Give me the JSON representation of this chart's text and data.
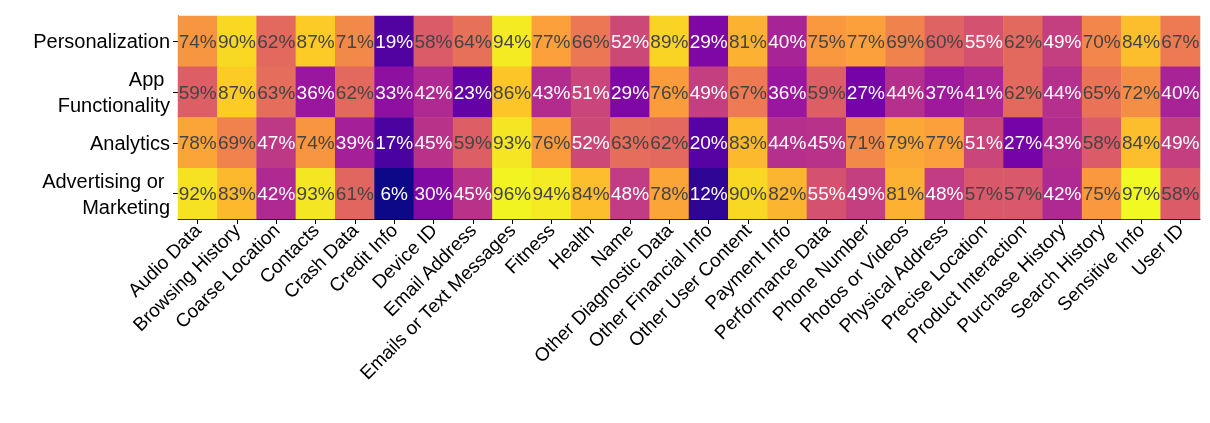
{
  "chart_data": {
    "type": "heatmap",
    "categories": [
      "Audio Data",
      "Browsing History",
      "Coarse Location",
      "Contacts",
      "Crash Data",
      "Credit Info",
      "Device ID",
      "Email Address",
      "Emails or Text Messages",
      "Fitness",
      "Health",
      "Name",
      "Other Diagnostic Data",
      "Other Financial Info",
      "Other User Content",
      "Payment Info",
      "Performance Data",
      "Phone Number",
      "Photos or Videos",
      "Physical Address",
      "Precise Location",
      "Product Interaction",
      "Purchase History",
      "Search History",
      "Sensitive Info",
      "User ID"
    ],
    "y_categories": [
      "Personalization",
      "App Functionality",
      "Analytics",
      "Advertising or Marketing"
    ],
    "cells": [
      [
        74,
        90,
        62,
        87,
        71,
        19,
        58,
        64,
        94,
        77,
        66,
        52,
        89,
        29,
        81,
        40,
        75,
        77,
        69,
        60,
        55,
        62,
        49,
        70,
        84,
        67
      ],
      [
        59,
        87,
        63,
        36,
        62,
        33,
        42,
        23,
        86,
        43,
        51,
        29,
        76,
        49,
        67,
        36,
        59,
        27,
        44,
        37,
        41,
        62,
        44,
        65,
        72,
        40
      ],
      [
        78,
        69,
        47,
        74,
        39,
        17,
        45,
        59,
        93,
        76,
        52,
        63,
        62,
        20,
        83,
        44,
        45,
        71,
        79,
        77,
        51,
        27,
        43,
        58,
        84,
        49
      ],
      [
        92,
        83,
        42,
        93,
        61,
        6,
        30,
        45,
        96,
        94,
        84,
        48,
        78,
        12,
        90,
        82,
        55,
        49,
        81,
        48,
        57,
        57,
        42,
        75,
        97,
        58
      ]
    ],
    "cell_labels": [
      [
        "74%",
        "90%",
        "62%",
        "87%",
        "71%",
        "19%",
        "58%",
        "64%",
        "94%",
        "77%",
        "66%",
        "52%",
        "89%",
        "29%",
        "81%",
        "40%",
        "75%",
        "77%",
        "69%",
        "60%",
        "55%",
        "62%",
        "49%",
        "70%",
        "84%",
        "67%"
      ],
      [
        "59%",
        "87%",
        "63%",
        "36%",
        "62%",
        "33%",
        "42%",
        "23%",
        "86%",
        "43%",
        "51%",
        "29%",
        "76%",
        "49%",
        "67%",
        "36%",
        "59%",
        "27%",
        "44%",
        "37%",
        "41%",
        "62%",
        "44%",
        "65%",
        "72%",
        "40%"
      ],
      [
        "78%",
        "69%",
        "47%",
        "74%",
        "39%",
        "17%",
        "45%",
        "59%",
        "93%",
        "76%",
        "52%",
        "63%",
        "62%",
        "20%",
        "83%",
        "44%",
        "45%",
        "71%",
        "79%",
        "77%",
        "51%",
        "27%",
        "43%",
        "58%",
        "84%",
        "49%"
      ],
      [
        "92%",
        "83%",
        "42%",
        "93%",
        "61%",
        "6%",
        "30%",
        "45%",
        "96%",
        "94%",
        "84%",
        "48%",
        "78%",
        "12%",
        "90%",
        "82%",
        "55%",
        "49%",
        "81%",
        "48%",
        "57%",
        "57%",
        "42%",
        "75%",
        "97%",
        "58%"
      ]
    ]
  }
}
